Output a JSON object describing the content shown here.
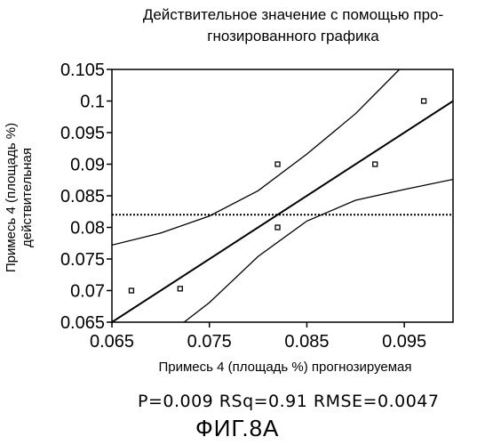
{
  "chart_data": {
    "type": "scatter",
    "title_line1": "Действительное значение с помощью про-",
    "title_line2": "гнозированного графика",
    "xlabel": "Примесь 4 (площадь %) прогнозируемая",
    "ylabel_line1": "Примесь 4 (площадь %)",
    "ylabel_line2": "действительная",
    "xlim": [
      0.065,
      0.1
    ],
    "ylim": [
      0.065,
      0.105
    ],
    "x_ticks": [
      0.065,
      0.075,
      0.085,
      0.095
    ],
    "x_tick_labels": [
      "0.065",
      "0.075",
      "0.085",
      "0.095"
    ],
    "y_ticks": [
      0.065,
      0.07,
      0.075,
      0.08,
      0.085,
      0.09,
      0.095,
      0.1,
      0.105
    ],
    "y_tick_labels": [
      "0.065",
      "0.07",
      "0.075",
      "0.08",
      "0.085",
      "0.09",
      "0.095",
      "0.1",
      "0.105"
    ],
    "points": [
      {
        "x": 0.067,
        "y": 0.07
      },
      {
        "x": 0.072,
        "y": 0.0703
      },
      {
        "x": 0.082,
        "y": 0.09
      },
      {
        "x": 0.082,
        "y": 0.08
      },
      {
        "x": 0.092,
        "y": 0.09
      },
      {
        "x": 0.097,
        "y": 0.1
      }
    ],
    "fit_line": {
      "x": [
        0.065,
        0.1
      ],
      "y": [
        0.065,
        0.1
      ]
    },
    "confidence_upper": {
      "x": [
        0.065,
        0.07,
        0.075,
        0.08,
        0.085,
        0.09,
        0.0945
      ],
      "y": [
        0.0772,
        0.0791,
        0.0818,
        0.0858,
        0.0916,
        0.098,
        0.105
      ]
    },
    "confidence_lower": {
      "x": [
        0.0724,
        0.075,
        0.08,
        0.085,
        0.09,
        0.095,
        0.1
      ],
      "y": [
        0.065,
        0.0681,
        0.0754,
        0.081,
        0.0843,
        0.086,
        0.0876
      ]
    },
    "mean_line_y": 0.082,
    "grid": false
  },
  "stats_text": "P=0.009  RSq=0.91  RMSE=0.0047",
  "figure_label": "ФИГ.8А"
}
